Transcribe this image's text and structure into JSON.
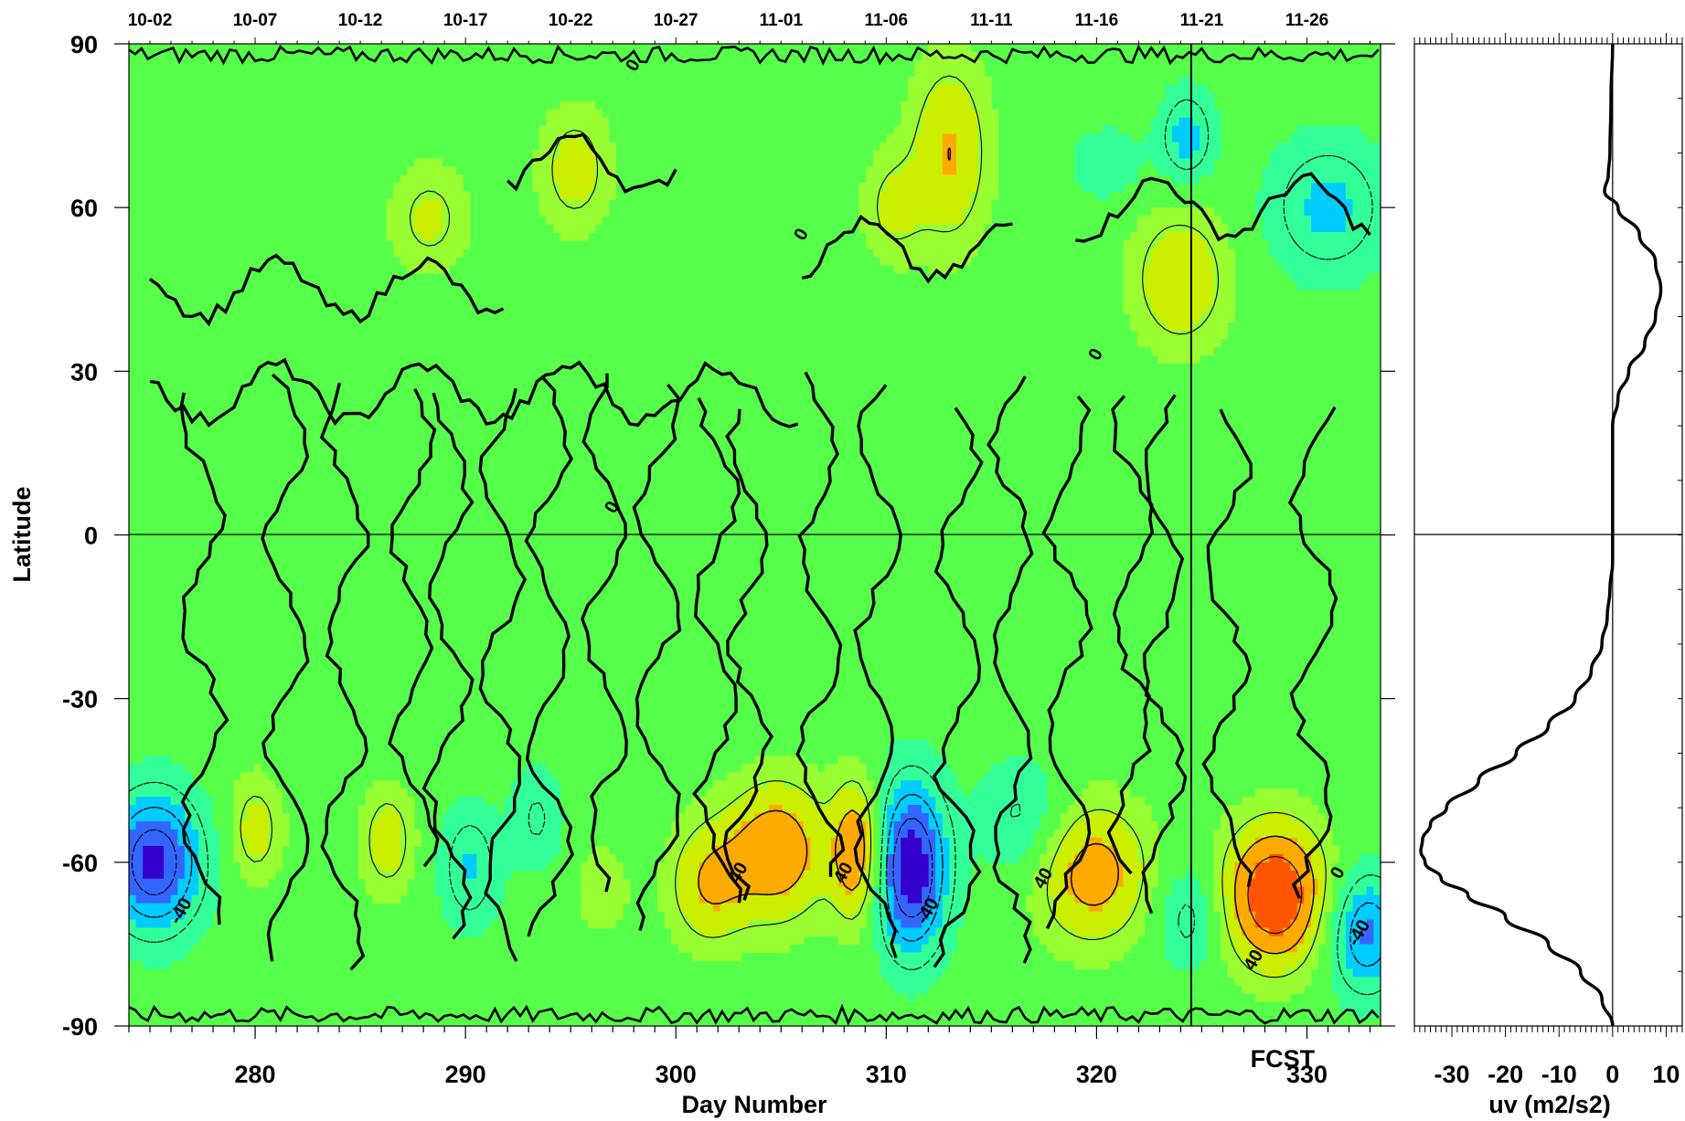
{
  "chart_data": [
    {
      "type": "heatmap",
      "title": "",
      "xlabel": "Day Number",
      "ylabel": "Latitude",
      "xlim": [
        274,
        333.5
      ],
      "ylim": [
        -90,
        90
      ],
      "x_ticks": [
        280,
        290,
        300,
        310,
        320,
        330
      ],
      "y_ticks": [
        90,
        60,
        30,
        0,
        -30,
        -60,
        -90
      ],
      "top_date_labels": [
        {
          "label": "10-02",
          "day": 275
        },
        {
          "label": "10-07",
          "day": 280
        },
        {
          "label": "10-12",
          "day": 285
        },
        {
          "label": "10-17",
          "day": 290
        },
        {
          "label": "10-22",
          "day": 295
        },
        {
          "label": "10-27",
          "day": 300
        },
        {
          "label": "11-01",
          "day": 305
        },
        {
          "label": "11-06",
          "day": 310
        },
        {
          "label": "11-11",
          "day": 315
        },
        {
          "label": "11-16",
          "day": 320
        },
        {
          "label": "11-21",
          "day": 325
        },
        {
          "label": "11-26",
          "day": 330
        }
      ],
      "forecast_marker": {
        "label": "FCST",
        "day": 324.5
      },
      "contour_levels": [
        -40,
        0,
        40
      ],
      "contour_labels": [
        {
          "text": "0",
          "x": 298,
          "y": 86
        },
        {
          "text": "0",
          "x": 297,
          "y": 5
        },
        {
          "text": "0",
          "x": 306,
          "y": 55
        },
        {
          "text": "0",
          "x": 320,
          "y": 33
        },
        {
          "text": "-40",
          "x": 276.5,
          "y": -69
        },
        {
          "text": "40",
          "x": 303,
          "y": -62
        },
        {
          "text": "40",
          "x": 308,
          "y": -62
        },
        {
          "text": "-40",
          "x": 312,
          "y": -69
        },
        {
          "text": "40",
          "x": 317.5,
          "y": -63
        },
        {
          "text": "40",
          "x": 327.5,
          "y": -78
        },
        {
          "text": "-40",
          "x": 332.5,
          "y": -73
        },
        {
          "text": "0",
          "x": 331.5,
          "y": -62
        }
      ],
      "anomalies": [
        {
          "x": 275.2,
          "y": -60,
          "v": -75,
          "sx": 1.6,
          "sy": 9
        },
        {
          "x": 311.2,
          "y": -61,
          "v": -85,
          "sx": 1.2,
          "sy": 11
        },
        {
          "x": 332.8,
          "y": -73,
          "v": -55,
          "sx": 1.3,
          "sy": 8
        },
        {
          "x": 290.2,
          "y": -61,
          "v": -32,
          "sx": 1.0,
          "sy": 8
        },
        {
          "x": 293.4,
          "y": -52,
          "v": -22,
          "sx": 0.9,
          "sy": 7
        },
        {
          "x": 316.5,
          "y": -52,
          "v": -25,
          "sx": 1.5,
          "sy": 8
        },
        {
          "x": 324.4,
          "y": -70,
          "v": -28,
          "sx": 1.1,
          "sy": 7
        },
        {
          "x": 324.3,
          "y": 73,
          "v": -38,
          "sx": 0.9,
          "sy": 6
        },
        {
          "x": 331,
          "y": 60,
          "v": -35,
          "sx": 2.0,
          "sy": 9
        },
        {
          "x": 320.5,
          "y": 68,
          "v": -18,
          "sx": 1.3,
          "sy": 5
        },
        {
          "x": 286.3,
          "y": -56,
          "v": 32,
          "sx": 0.9,
          "sy": 7
        },
        {
          "x": 280,
          "y": -54,
          "v": 30,
          "sx": 0.9,
          "sy": 7
        },
        {
          "x": 301.5,
          "y": -64,
          "v": 38,
          "sx": 1.3,
          "sy": 8
        },
        {
          "x": 304.8,
          "y": -58,
          "v": 56,
          "sx": 1.7,
          "sy": 9
        },
        {
          "x": 308.6,
          "y": -58,
          "v": 58,
          "sx": 0.8,
          "sy": 9
        },
        {
          "x": 319.8,
          "y": -62,
          "v": 50,
          "sx": 1.9,
          "sy": 9
        },
        {
          "x": 328.5,
          "y": -66,
          "v": 82,
          "sx": 1.7,
          "sy": 9
        },
        {
          "x": 296.5,
          "y": -65,
          "v": 18,
          "sx": 0.9,
          "sy": 6
        },
        {
          "x": 313,
          "y": 70,
          "v": 40,
          "sx": 1.3,
          "sy": 12
        },
        {
          "x": 310.3,
          "y": 60,
          "v": 25,
          "sx": 1.0,
          "sy": 7
        },
        {
          "x": 295.2,
          "y": 67,
          "v": 30,
          "sx": 1.2,
          "sy": 8
        },
        {
          "x": 288.3,
          "y": 58,
          "v": 26,
          "sx": 1.3,
          "sy": 7
        },
        {
          "x": 324,
          "y": 47,
          "v": 38,
          "sx": 1.6,
          "sy": 9
        }
      ],
      "colormap": [
        "#3300cc",
        "#3366ff",
        "#00ccff",
        "#33ff99",
        "#55ff4a",
        "#99ff33",
        "#ccee00",
        "#ffaa00",
        "#ff5500"
      ],
      "side_panel": {
        "type": "line",
        "xlabel": "uv (m2/s2)",
        "xlim": [
          -37,
          13
        ],
        "x_ticks": [
          -30,
          -20,
          -10,
          0,
          10
        ],
        "y": [
          90,
          80,
          70,
          66,
          63,
          60,
          55,
          50,
          45,
          40,
          35,
          30,
          25,
          20,
          15,
          10,
          5,
          0,
          -5,
          -10,
          -15,
          -20,
          -25,
          -30,
          -35,
          -40,
          -45,
          -50,
          -53,
          -56,
          -58,
          -60,
          -63,
          -66,
          -70,
          -75,
          -80,
          -85,
          -90
        ],
        "x": [
          0,
          -0.3,
          -0.5,
          -0.8,
          -1.5,
          1,
          5,
          8,
          9,
          8,
          6,
          3,
          1,
          0,
          0,
          0,
          0,
          0,
          0,
          -0.5,
          -1,
          -2,
          -4,
          -7,
          -12,
          -18,
          -25,
          -31,
          -34,
          -35.5,
          -35.8,
          -35,
          -32,
          -27,
          -20,
          -12,
          -6,
          -2,
          0
        ]
      }
    }
  ]
}
